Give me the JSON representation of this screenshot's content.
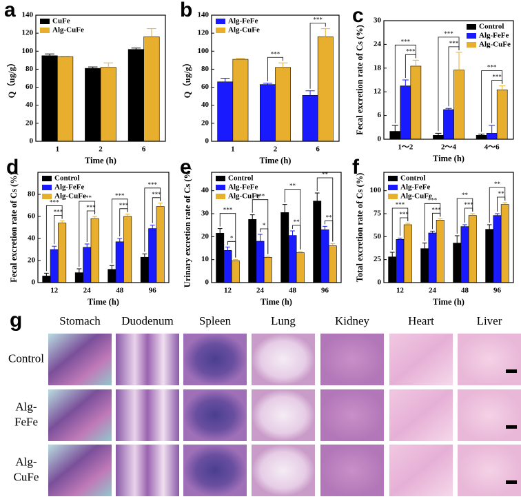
{
  "chart_data": [
    {
      "type": "bar",
      "panel": "a",
      "xlabel": "Time (h)",
      "ylabel": "Q（ug/g）",
      "categories": [
        "1",
        "2",
        "6"
      ],
      "series": [
        {
          "name": "CuFe",
          "color": "#000000",
          "values": [
            95,
            81,
            102
          ],
          "errors": [
            2,
            1.5,
            1.5
          ]
        },
        {
          "name": "Alg-CuFe",
          "color": "#e8ae2e",
          "values": [
            94,
            82,
            116
          ],
          "errors": [
            0.5,
            5,
            9
          ]
        }
      ],
      "ylim": [
        0,
        140
      ],
      "yticks": [
        0,
        20,
        40,
        60,
        80,
        100,
        120,
        140
      ],
      "legend": "upper left",
      "annotations": []
    },
    {
      "type": "bar",
      "panel": "b",
      "xlabel": "Time (h)",
      "ylabel": "Q（ug/g）",
      "categories": [
        "1",
        "2",
        "6"
      ],
      "series": [
        {
          "name": "Alg-FeFe",
          "color": "#1a1aff",
          "values": [
            66,
            63,
            51
          ],
          "errors": [
            4,
            1.5,
            5
          ]
        },
        {
          "name": "Alg-CuFe",
          "color": "#e8ae2e",
          "values": [
            91,
            82,
            116
          ],
          "errors": [
            1,
            5,
            9
          ]
        }
      ],
      "ylim": [
        0,
        140
      ],
      "yticks": [
        0,
        20,
        40,
        60,
        80,
        100,
        120,
        140
      ],
      "legend": "upper left",
      "annotations": [
        {
          "text": "***",
          "category": "2",
          "between": [
            "Alg-FeFe",
            "Alg-CuFe"
          ]
        },
        {
          "text": "***",
          "category": "6",
          "between": [
            "Alg-FeFe",
            "Alg-CuFe"
          ]
        }
      ]
    },
    {
      "type": "bar",
      "panel": "c",
      "xlabel": "Time (h)",
      "ylabel": "Fecal excretion rate of Cs (%)",
      "categories": [
        "1～2",
        "2～4",
        "4～6"
      ],
      "series": [
        {
          "name": "Control",
          "color": "#000000",
          "values": [
            2,
            1,
            1
          ],
          "errors": [
            1.5,
            0.5,
            0.3
          ]
        },
        {
          "name": "Alg-FeFe",
          "color": "#1a1aff",
          "values": [
            13.5,
            7.5,
            1.5
          ],
          "errors": [
            1.5,
            0.3,
            2
          ]
        },
        {
          "name": "Alg-CuFe",
          "color": "#e8ae2e",
          "values": [
            18.5,
            17.5,
            12.5
          ],
          "errors": [
            1.5,
            4.5,
            1
          ]
        }
      ],
      "ylim": [
        0,
        30
      ],
      "yticks": [
        0,
        6,
        12,
        18,
        24,
        30
      ],
      "legend": "upper right",
      "annotations": [
        {
          "text": "***",
          "category": "1～2",
          "between": [
            "Control",
            "Alg-CuFe"
          ]
        },
        {
          "text": "***",
          "category": "1～2",
          "between": [
            "Alg-FeFe",
            "Alg-CuFe"
          ]
        },
        {
          "text": "***",
          "category": "2～4",
          "between": [
            "Control",
            "Alg-CuFe"
          ]
        },
        {
          "text": "***",
          "category": "2～4",
          "between": [
            "Alg-FeFe",
            "Alg-CuFe"
          ]
        },
        {
          "text": "***",
          "category": "4～6",
          "between": [
            "Control",
            "Alg-CuFe"
          ]
        },
        {
          "text": "***",
          "category": "4～6",
          "between": [
            "Alg-FeFe",
            "Alg-CuFe"
          ]
        }
      ]
    },
    {
      "type": "bar",
      "panel": "d",
      "xlabel": "Time (h)",
      "ylabel": "Fecal excretion rate of Cs (%)",
      "categories": [
        "12",
        "24",
        "48",
        "96"
      ],
      "series": [
        {
          "name": "Control",
          "color": "#000000",
          "values": [
            6,
            9,
            12,
            23
          ],
          "errors": [
            2.5,
            3.5,
            3.5,
            3
          ]
        },
        {
          "name": "Alg-FeFe",
          "color": "#1a1aff",
          "values": [
            30,
            32,
            37,
            49
          ],
          "errors": [
            3,
            3,
            3,
            3
          ]
        },
        {
          "name": "Alg-CuFe",
          "color": "#e8ae2e",
          "values": [
            54,
            58,
            60,
            69
          ],
          "errors": [
            2,
            2,
            2,
            3
          ]
        }
      ],
      "ylim": [
        0,
        100
      ],
      "yticks": [
        0,
        20,
        40,
        60,
        80
      ],
      "legend": "upper left",
      "annotations": [
        {
          "text": "***",
          "category": "12",
          "between": [
            "Control",
            "Alg-CuFe"
          ]
        },
        {
          "text": "***",
          "category": "12",
          "between": [
            "Alg-FeFe",
            "Alg-CuFe"
          ]
        },
        {
          "text": "***",
          "category": "24",
          "between": [
            "Control",
            "Alg-CuFe"
          ]
        },
        {
          "text": "***",
          "category": "24",
          "between": [
            "Alg-FeFe",
            "Alg-CuFe"
          ]
        },
        {
          "text": "***",
          "category": "48",
          "between": [
            "Control",
            "Alg-CuFe"
          ]
        },
        {
          "text": "***",
          "category": "48",
          "between": [
            "Alg-FeFe",
            "Alg-CuFe"
          ]
        },
        {
          "text": "***",
          "category": "96",
          "between": [
            "Control",
            "Alg-CuFe"
          ]
        },
        {
          "text": "***",
          "category": "96",
          "between": [
            "Alg-FeFe",
            "Alg-CuFe"
          ]
        }
      ]
    },
    {
      "type": "bar",
      "panel": "e",
      "xlabel": "Time (h)",
      "ylabel": "Urinary excretion rate of Cs (%)",
      "categories": [
        "12",
        "24",
        "48",
        "96"
      ],
      "series": [
        {
          "name": "Control",
          "color": "#000000",
          "values": [
            21.5,
            27.5,
            30.5,
            35.5
          ],
          "errors": [
            2,
            2,
            3.5,
            3.5
          ]
        },
        {
          "name": "Alg-FeFe",
          "color": "#1a1aff",
          "values": [
            14,
            18,
            20.5,
            23
          ],
          "errors": [
            1.5,
            3,
            2,
            1.5
          ]
        },
        {
          "name": "Alg-CuFe",
          "color": "#e8ae2e",
          "values": [
            9.5,
            11,
            13,
            16
          ],
          "errors": [
            0.5,
            0.5,
            0.5,
            1
          ]
        }
      ],
      "ylim": [
        0,
        48
      ],
      "yticks": [
        0,
        10,
        20,
        30,
        40
      ],
      "legend": "upper left",
      "annotations": [
        {
          "text": "***",
          "category": "12",
          "between": [
            "Control",
            "Alg-CuFe"
          ]
        },
        {
          "text": "*",
          "category": "12",
          "between": [
            "Alg-FeFe",
            "Alg-CuFe"
          ]
        },
        {
          "text": "***",
          "category": "24",
          "between": [
            "Control",
            "Alg-CuFe"
          ]
        },
        {
          "text": "*",
          "category": "24",
          "between": [
            "Alg-FeFe",
            "Alg-CuFe"
          ]
        },
        {
          "text": "**",
          "category": "48",
          "between": [
            "Control",
            "Alg-CuFe"
          ]
        },
        {
          "text": "**",
          "category": "48",
          "between": [
            "Alg-FeFe",
            "Alg-CuFe"
          ]
        },
        {
          "text": "**",
          "category": "96",
          "between": [
            "Control",
            "Alg-CuFe"
          ]
        },
        {
          "text": "**",
          "category": "96",
          "between": [
            "Alg-FeFe",
            "Alg-CuFe"
          ]
        }
      ]
    },
    {
      "type": "bar",
      "panel": "f",
      "xlabel": "Time (h)",
      "ylabel": "Total excretion rate of Cs (%)",
      "categories": [
        "12",
        "24",
        "48",
        "96"
      ],
      "series": [
        {
          "name": "Control",
          "color": "#000000",
          "values": [
            28,
            37,
            43,
            58
          ],
          "errors": [
            5,
            6,
            8,
            5
          ]
        },
        {
          "name": "Alg-FeFe",
          "color": "#1a1aff",
          "values": [
            47,
            54,
            61,
            73
          ],
          "errors": [
            1.5,
            2,
            2,
            2
          ]
        },
        {
          "name": "Alg-CuFe",
          "color": "#e8ae2e",
          "values": [
            63,
            68,
            73,
            85
          ],
          "errors": [
            1.5,
            1.5,
            2,
            2
          ]
        }
      ],
      "ylim": [
        0,
        120
      ],
      "yticks": [
        0,
        25,
        50,
        75,
        100
      ],
      "legend": "upper left",
      "annotations": [
        {
          "text": "***",
          "category": "12",
          "between": [
            "Control",
            "Alg-CuFe"
          ]
        },
        {
          "text": "***",
          "category": "12",
          "between": [
            "Alg-FeFe",
            "Alg-CuFe"
          ]
        },
        {
          "text": "***",
          "category": "24",
          "between": [
            "Control",
            "Alg-CuFe"
          ]
        },
        {
          "text": "***",
          "category": "24",
          "between": [
            "Alg-FeFe",
            "Alg-CuFe"
          ]
        },
        {
          "text": "**",
          "category": "48",
          "between": [
            "Control",
            "Alg-CuFe"
          ]
        },
        {
          "text": "***",
          "category": "48",
          "between": [
            "Alg-FeFe",
            "Alg-CuFe"
          ]
        },
        {
          "text": "**",
          "category": "96",
          "between": [
            "Control",
            "Alg-CuFe"
          ]
        },
        {
          "text": "**",
          "category": "96",
          "between": [
            "Alg-FeFe",
            "Alg-CuFe"
          ]
        }
      ]
    }
  ],
  "histology": {
    "panel": "g",
    "columns": [
      "Stomach",
      "Duodenum",
      "Spleen",
      "Lung",
      "Kidney",
      "Heart",
      "Liver"
    ],
    "rows": [
      [
        "Control"
      ],
      [
        "Alg-",
        "FeFe"
      ],
      [
        "Alg-",
        "CuFe"
      ]
    ]
  }
}
